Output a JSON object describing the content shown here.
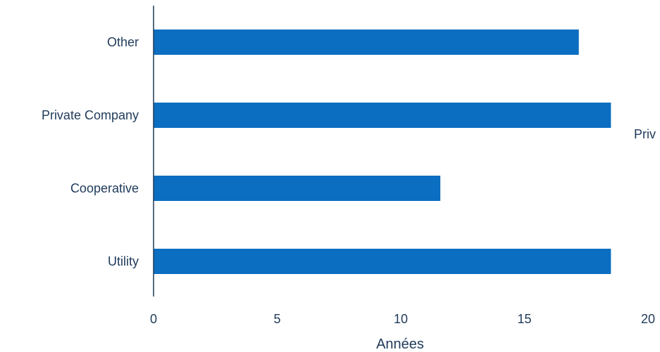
{
  "chart_data": {
    "type": "bar",
    "orientation": "horizontal",
    "categories": [
      "Other",
      "Private Company",
      "Cooperative",
      "Utility"
    ],
    "values": [
      17.2,
      18.5,
      11.6,
      18.5
    ],
    "xlabel": "Années",
    "ylabel": "",
    "xlim": [
      0,
      20
    ],
    "xticks": [
      "0",
      "5",
      "10",
      "15",
      "20"
    ],
    "bar_color": "#0b6ec1",
    "grid": false,
    "annotations": [
      {
        "text": "Priv"
      }
    ]
  }
}
